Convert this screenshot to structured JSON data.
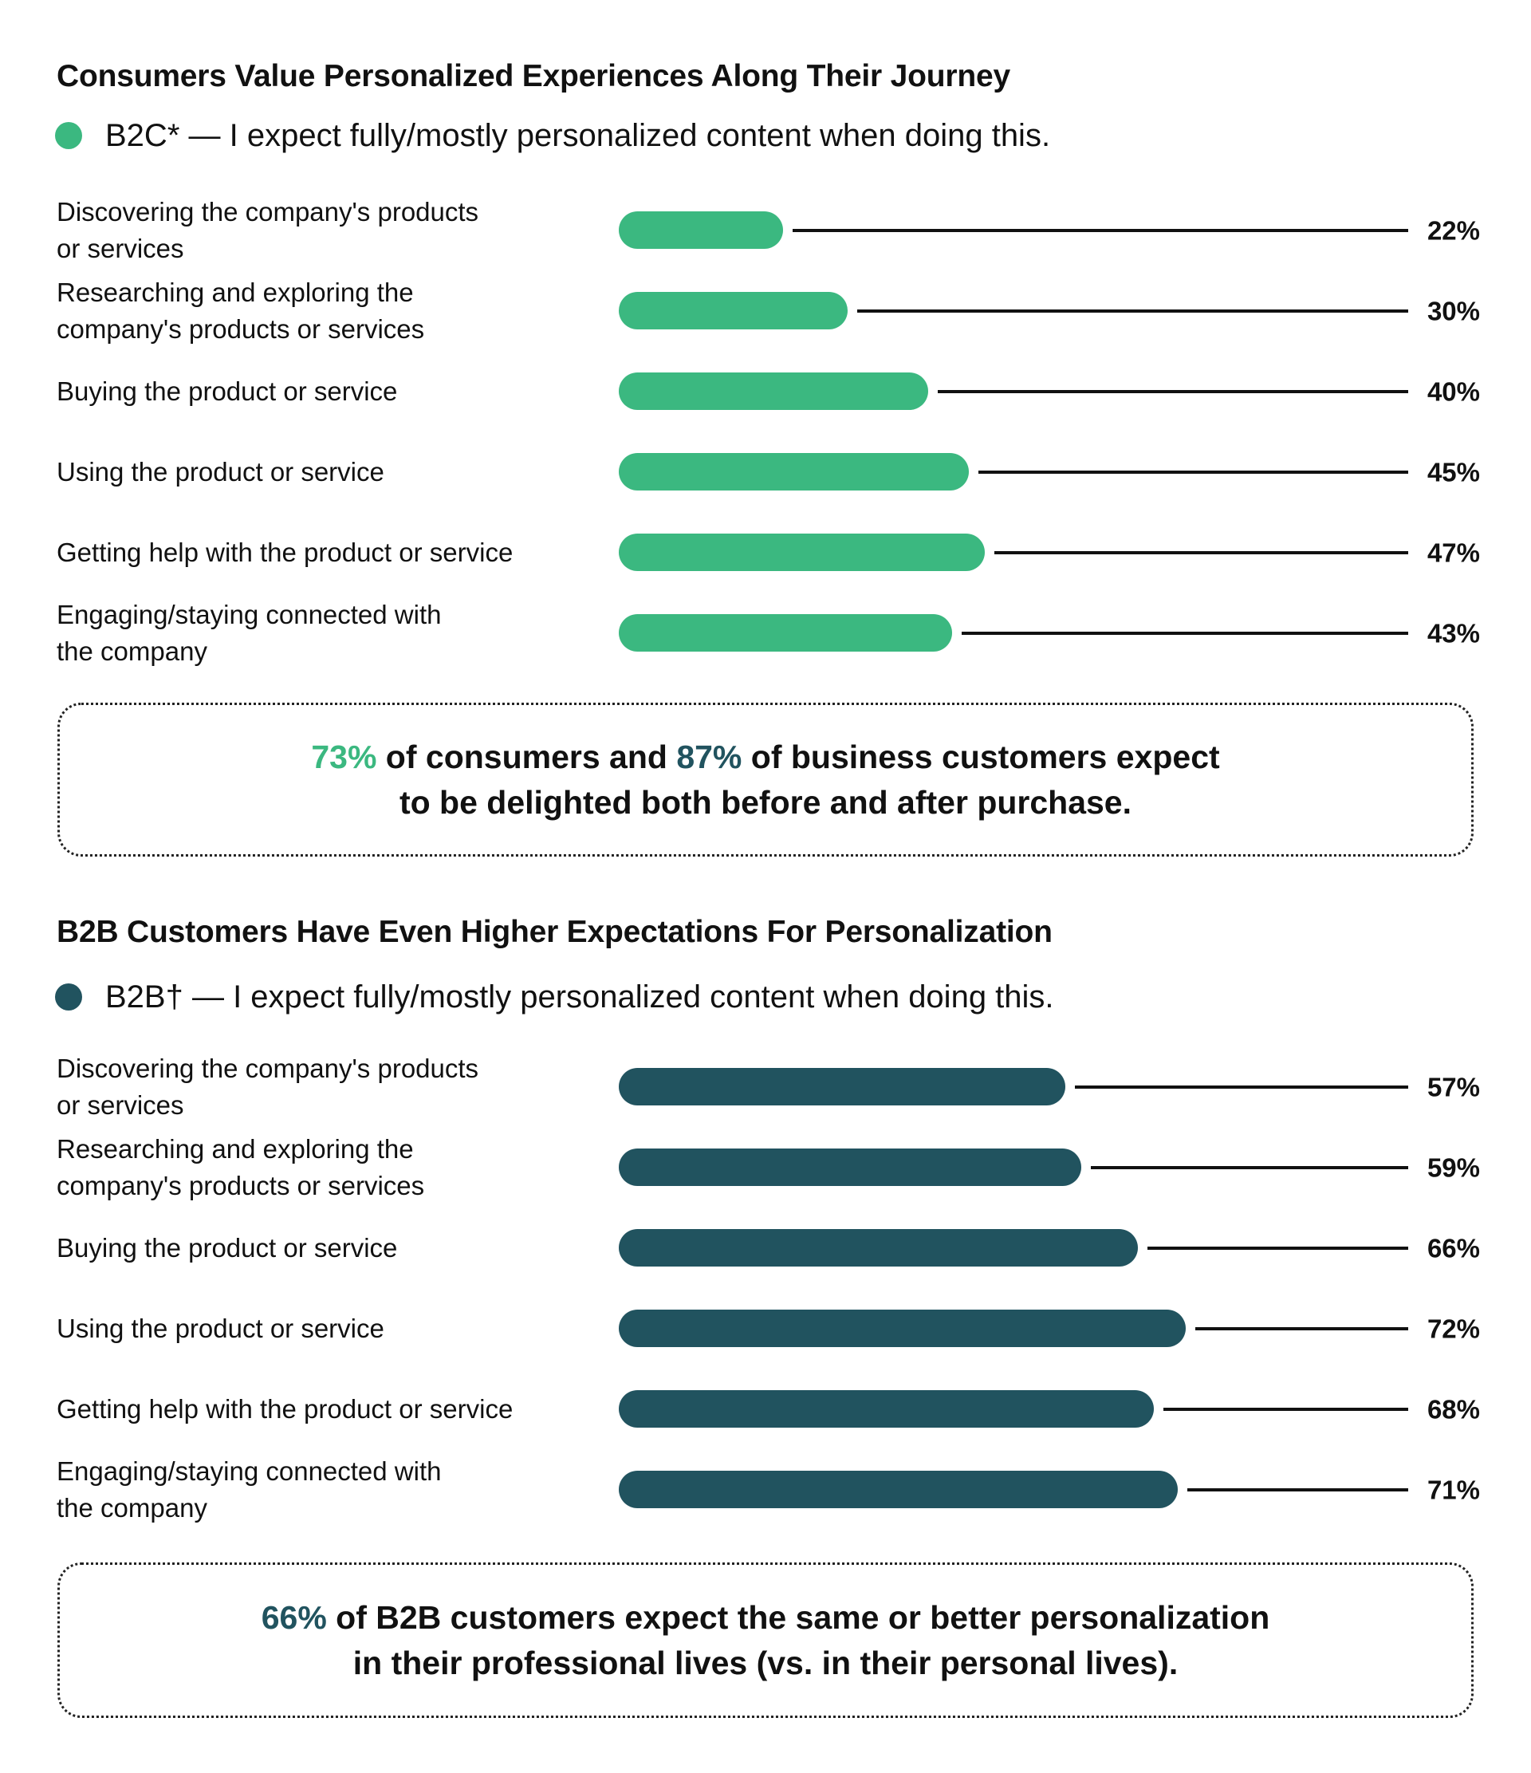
{
  "colors": {
    "b2c": "#3bb880",
    "b2b": "#21535f",
    "text": "#111111",
    "leader": "#111111"
  },
  "b2c": {
    "title": "Consumers Value Personalized Experiences Along Their Journey",
    "legend": "B2C* — I expect fully/mostly personalized content when doing this.",
    "callout": {
      "highlight1": "73%",
      "text1": " of consumers and ",
      "highlight2": "87%",
      "text2": " of business customers expect",
      "line2": "to be delighted both before and after purchase."
    }
  },
  "b2b": {
    "title": "B2B Customers Have Even Higher Expectations For Personalization",
    "legend": "B2B† — I expect fully/mostly personalized content when doing this.",
    "callout": {
      "highlight1": "66%",
      "text1": " of B2B customers expect the same or better personalization",
      "line2": "in their professional lives (vs. in their personal lives)."
    }
  },
  "chart_data": [
    {
      "type": "bar",
      "orientation": "horizontal",
      "title": "Consumers Value Personalized Experiences Along Their Journey",
      "legend": [
        "B2C* — I expect fully/mostly personalized content when doing this."
      ],
      "categories": [
        "Discovering the company's products\nor services",
        "Researching and exploring the\ncompany's products or services",
        "Buying the product or service",
        "Using the product or service",
        "Getting help with the product or service",
        "Engaging/staying connected with\nthe company"
      ],
      "series": [
        {
          "name": "B2C",
          "values": [
            22,
            30,
            40,
            45,
            47,
            43
          ]
        }
      ],
      "value_labels": [
        "22%",
        "30%",
        "40%",
        "45%",
        "47%",
        "43%"
      ],
      "xlim": [
        0,
        100
      ],
      "unit": "%",
      "grid": false
    },
    {
      "type": "bar",
      "orientation": "horizontal",
      "title": "B2B Customers Have Even Higher Expectations For Personalization",
      "legend": [
        "B2B† — I expect fully/mostly personalized content when doing this."
      ],
      "categories": [
        "Discovering the company's products\nor services",
        "Researching and exploring the\ncompany's products or services",
        "Buying the product or service",
        "Using the product or service",
        "Getting help with the product or service",
        "Engaging/staying connected with\nthe company"
      ],
      "series": [
        {
          "name": "B2B",
          "values": [
            57,
            59,
            66,
            72,
            68,
            71
          ]
        }
      ],
      "value_labels": [
        "57%",
        "59%",
        "66%",
        "72%",
        "68%",
        "71%"
      ],
      "xlim": [
        0,
        100
      ],
      "unit": "%",
      "grid": false
    }
  ]
}
